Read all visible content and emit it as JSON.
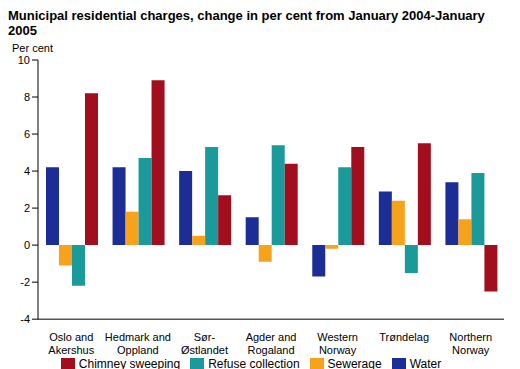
{
  "chart_data": {
    "type": "bar",
    "title": "Municipal residential charges, change in per cent from January 2004-January 2005",
    "y_label": "Per cent",
    "categories": [
      "Oslo and Akershus",
      "Hedmark and Oppland",
      "Sør-Østlandet",
      "Agder and Rogaland",
      "Western Norway",
      "Trøndelag",
      "Northern Norway"
    ],
    "series": [
      {
        "name": "Water",
        "color": "#1c2d96",
        "values": [
          4.2,
          4.2,
          4.0,
          1.5,
          -1.7,
          2.9,
          3.4
        ]
      },
      {
        "name": "Sewerage",
        "color": "#f7a21b",
        "values": [
          -1.1,
          1.8,
          0.5,
          -0.9,
          -0.2,
          2.4,
          1.4
        ]
      },
      {
        "name": "Refuse collection",
        "color": "#1a9a9a",
        "values": [
          -2.2,
          4.7,
          5.3,
          5.4,
          4.2,
          -1.5,
          3.9
        ]
      },
      {
        "name": "Chimney sweeping",
        "color": "#a10f1f",
        "values": [
          8.2,
          8.9,
          2.7,
          4.4,
          5.3,
          5.5,
          -2.5
        ]
      }
    ],
    "ylim": [
      -4,
      10
    ],
    "yticks": [
      -4,
      -2,
      0,
      2,
      4,
      6,
      8,
      10
    ],
    "grid": false,
    "legend": "bottom"
  }
}
